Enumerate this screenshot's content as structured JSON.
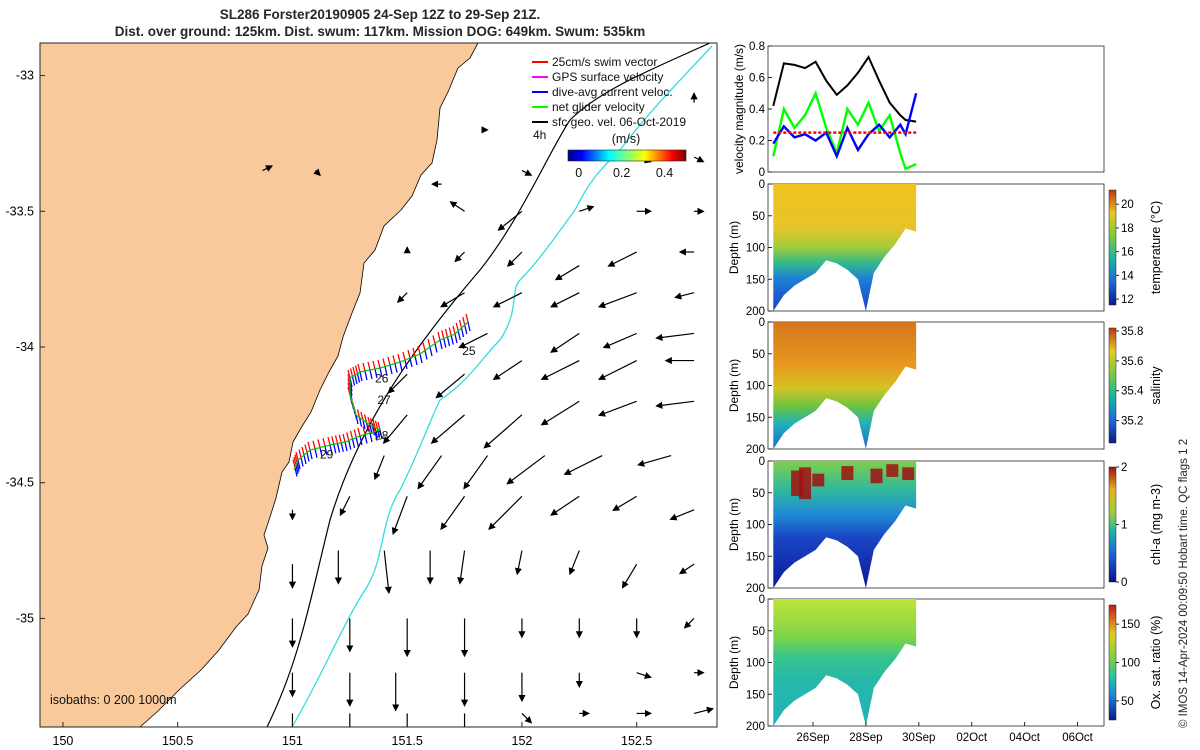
{
  "title": {
    "line1": "SL286 Forster20190905 24-Sep 12Z to 29-Sep 21Z.",
    "line2": "Dist. over ground: 125km. Dist. swum: 117km. Mission DOG: 649km. Swum: 535km"
  },
  "credit": "© IMOS 14-Apr-2024 00:09:50 Hobart time. QC flags 1  2",
  "map": {
    "lon_ticks": [
      "150",
      "150.5",
      "151",
      "151.5",
      "152",
      "152.5"
    ],
    "lat_ticks": [
      "-33",
      "-33.5",
      "-34",
      "-34.5",
      "-35"
    ],
    "lon_range": [
      149.9,
      152.85
    ],
    "lat_range": [
      -32.88,
      -35.4
    ],
    "isobaths_label": "isobaths: 0   200  1000m",
    "legend": [
      {
        "label": "25cm/s swim vector",
        "color": "#ff0000"
      },
      {
        "label": "GPS surface velocity",
        "color": "#ff00ff"
      },
      {
        "label": "dive-avg current veloc.",
        "color": "#0000ff"
      },
      {
        "label": "net glider velocity",
        "color": "#00ff00"
      },
      {
        "label": "sfc geo. vel. 06-Oct-2019",
        "color": "#000000"
      }
    ],
    "colorbar": {
      "label": "(m/s)",
      "ticks": [
        "0",
        "0.2",
        "0.4"
      ],
      "range": [
        -0.05,
        0.5
      ]
    },
    "time_label": "4h",
    "day_labels": [
      {
        "text": "25",
        "lon": 151.74,
        "lat": -34.03
      },
      {
        "text": "26",
        "lon": 151.36,
        "lat": -34.13
      },
      {
        "text": "27",
        "lon": 151.37,
        "lat": -34.21
      },
      {
        "text": "28",
        "lon": 151.36,
        "lat": -34.34
      },
      {
        "text": "29",
        "lon": 151.12,
        "lat": -34.41
      }
    ],
    "colors": {
      "land": "#f9c89b",
      "coast": "#000000",
      "isobath_200": "#000000",
      "isobath_1000": "#33dddd"
    }
  },
  "chart_data": [
    {
      "type": "line",
      "ylabel": "velocity magnitude (m/s)",
      "ylim": [
        0,
        0.8
      ],
      "yticks": [
        "0",
        "0.2",
        "0.4",
        "0.6",
        "0.8"
      ],
      "x_dates": [
        "26Sep",
        "28Sep",
        "30Sep",
        "02Oct",
        "04Oct",
        "06Oct"
      ],
      "x": [
        24.5,
        24.9,
        25.3,
        25.7,
        26.1,
        26.5,
        26.9,
        27.3,
        27.7,
        28.1,
        28.5,
        28.9,
        29.3,
        29.5,
        29.9
      ],
      "series": [
        {
          "color": "#000000",
          "values": [
            0.42,
            0.69,
            0.68,
            0.66,
            0.7,
            0.58,
            0.49,
            0.55,
            0.63,
            0.73,
            0.58,
            0.44,
            0.36,
            0.33,
            0.32
          ]
        },
        {
          "color": "#00ff00",
          "values": [
            0.1,
            0.4,
            0.28,
            0.36,
            0.5,
            0.28,
            0.12,
            0.4,
            0.3,
            0.44,
            0.26,
            0.36,
            0.12,
            0.02,
            0.05
          ]
        },
        {
          "color": "#0000ff",
          "values": [
            0.18,
            0.29,
            0.22,
            0.24,
            0.2,
            0.25,
            0.1,
            0.28,
            0.14,
            0.24,
            0.3,
            0.22,
            0.3,
            0.24,
            0.5
          ]
        },
        {
          "color": "#ff0000",
          "values": [
            0.25,
            0.25,
            0.25,
            0.25,
            0.25,
            0.25,
            0.25,
            0.25,
            0.25,
            0.25,
            0.25,
            0.25,
            0.25,
            0.25,
            0.25
          ]
        }
      ]
    },
    {
      "type": "heatmap",
      "ylabel": "Depth (m)",
      "yticks": [
        "0",
        "50",
        "100",
        "150",
        "200"
      ],
      "ylim": [
        0,
        200
      ],
      "colorbar_label": "temperature (°C)",
      "colorbar_ticks": [
        "12",
        "14",
        "16",
        "18",
        "20"
      ],
      "colorbar_range": [
        11.5,
        21.2
      ],
      "x_range": [
        24.5,
        29.9
      ],
      "bottom_depth_profile": [
        [
          24.5,
          200
        ],
        [
          24.9,
          175
        ],
        [
          25.3,
          160
        ],
        [
          25.7,
          150
        ],
        [
          26.1,
          140
        ],
        [
          26.5,
          120
        ],
        [
          26.9,
          125
        ],
        [
          27.3,
          135
        ],
        [
          27.7,
          150
        ],
        [
          28.0,
          200
        ],
        [
          28.3,
          140
        ],
        [
          28.7,
          115
        ],
        [
          29.1,
          95
        ],
        [
          29.5,
          70
        ],
        [
          29.9,
          75
        ]
      ],
      "water_column_values": {
        "surface": 20.0,
        "thermocline_depth": 90,
        "deep": 13.0
      }
    },
    {
      "type": "heatmap",
      "ylabel": "Depth (m)",
      "yticks": [
        "0",
        "50",
        "100",
        "150",
        "200"
      ],
      "ylim": [
        0,
        200
      ],
      "colorbar_label": "salinity",
      "colorbar_ticks": [
        "35.2",
        "35.4",
        "35.6",
        "35.8"
      ],
      "colorbar_range": [
        35.05,
        35.82
      ],
      "x_range": [
        24.5,
        29.9
      ],
      "water_column_values": {
        "surface": 35.65,
        "thermocline_depth": 90,
        "deep": 35.2
      }
    },
    {
      "type": "heatmap",
      "ylabel": "Depth (m)",
      "yticks": [
        "0",
        "50",
        "100",
        "150",
        "200"
      ],
      "ylim": [
        0,
        200
      ],
      "colorbar_label": "chl-a (mg m-3)",
      "colorbar_ticks": [
        "0",
        "1",
        "2"
      ],
      "colorbar_range": [
        0,
        2
      ],
      "x_range": [
        24.5,
        29.9
      ],
      "water_column_values": {
        "surface": 0.8,
        "bloom_peak": 2.0,
        "deep": 0.1
      }
    },
    {
      "type": "heatmap",
      "ylabel": "Depth (m)",
      "yticks": [
        "0",
        "50",
        "100",
        "150",
        "200"
      ],
      "ylim": [
        0,
        200
      ],
      "colorbar_label": "Ox. sat. ratio (%)",
      "colorbar_ticks": [
        "50",
        "100",
        "150"
      ],
      "colorbar_range": [
        25,
        175
      ],
      "x_range": [
        24.5,
        29.9
      ],
      "water_column_values": {
        "surface": 120,
        "deep": 80
      }
    }
  ]
}
